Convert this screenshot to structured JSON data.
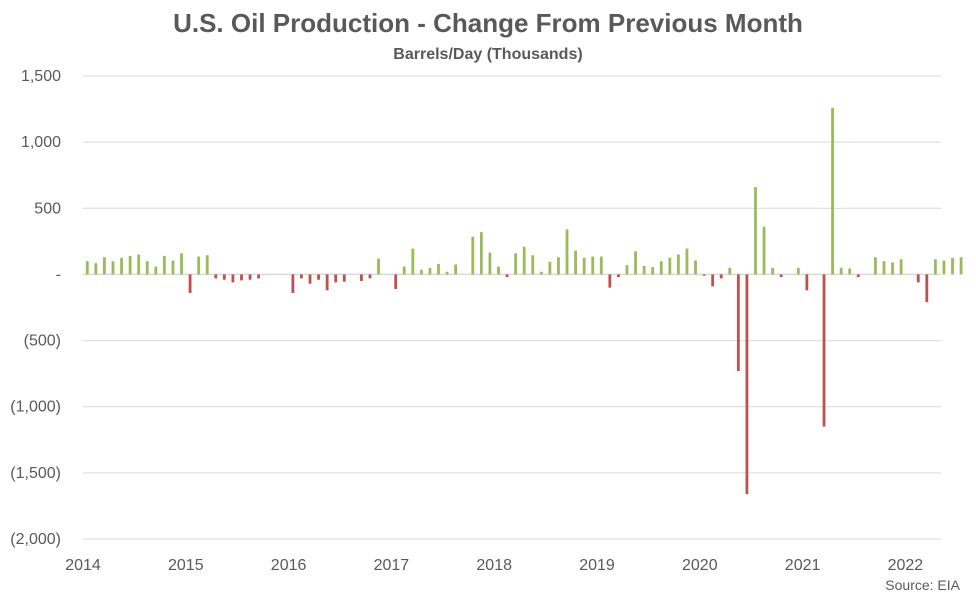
{
  "chart_data": {
    "type": "bar",
    "title": "U.S. Oil Production - Change From Previous Month",
    "subtitle": "Barrels/Day (Thousands)",
    "source": "Source: EIA",
    "x_tick_labels": [
      "2014",
      "2015",
      "2016",
      "2017",
      "2018",
      "2019",
      "2020",
      "2021",
      "2022"
    ],
    "y_tick_labels": [
      "1,500",
      "1,000",
      "500",
      "-",
      "(500)",
      "(1,000)",
      "(1,500)",
      "(2,000)"
    ],
    "ylim": [
      -2000,
      1500
    ],
    "grid": true,
    "legend": "none",
    "colors": {
      "positive": "#9bbb59",
      "negative": "#c0504d",
      "grid": "#d9d9d9"
    },
    "series": [
      {
        "values": [
          100,
          85,
          130,
          100,
          125,
          140,
          150,
          100,
          60,
          140,
          105,
          160,
          -140,
          135,
          145,
          -30,
          -40,
          -60,
          -45,
          -40,
          -30,
          0,
          0,
          0,
          -140,
          -30,
          -70,
          -40,
          -120,
          -60,
          -55,
          0,
          -50,
          -30,
          120,
          0,
          -110,
          60,
          195,
          35,
          50,
          80,
          20,
          75,
          0,
          285,
          320,
          165,
          60,
          -20,
          160,
          210,
          145,
          20,
          95,
          130,
          340,
          180,
          125,
          135,
          135,
          -100,
          -20,
          70,
          175,
          65,
          55,
          100,
          125,
          150,
          195,
          105,
          -10,
          -90,
          -30,
          50,
          -730,
          -1660,
          660,
          360,
          50,
          -20,
          0,
          50,
          -120,
          0,
          -1150,
          1260,
          50,
          45,
          -20,
          0,
          130,
          100,
          90,
          115,
          0,
          -60,
          -210,
          115,
          105,
          125,
          130
        ]
      }
    ]
  }
}
